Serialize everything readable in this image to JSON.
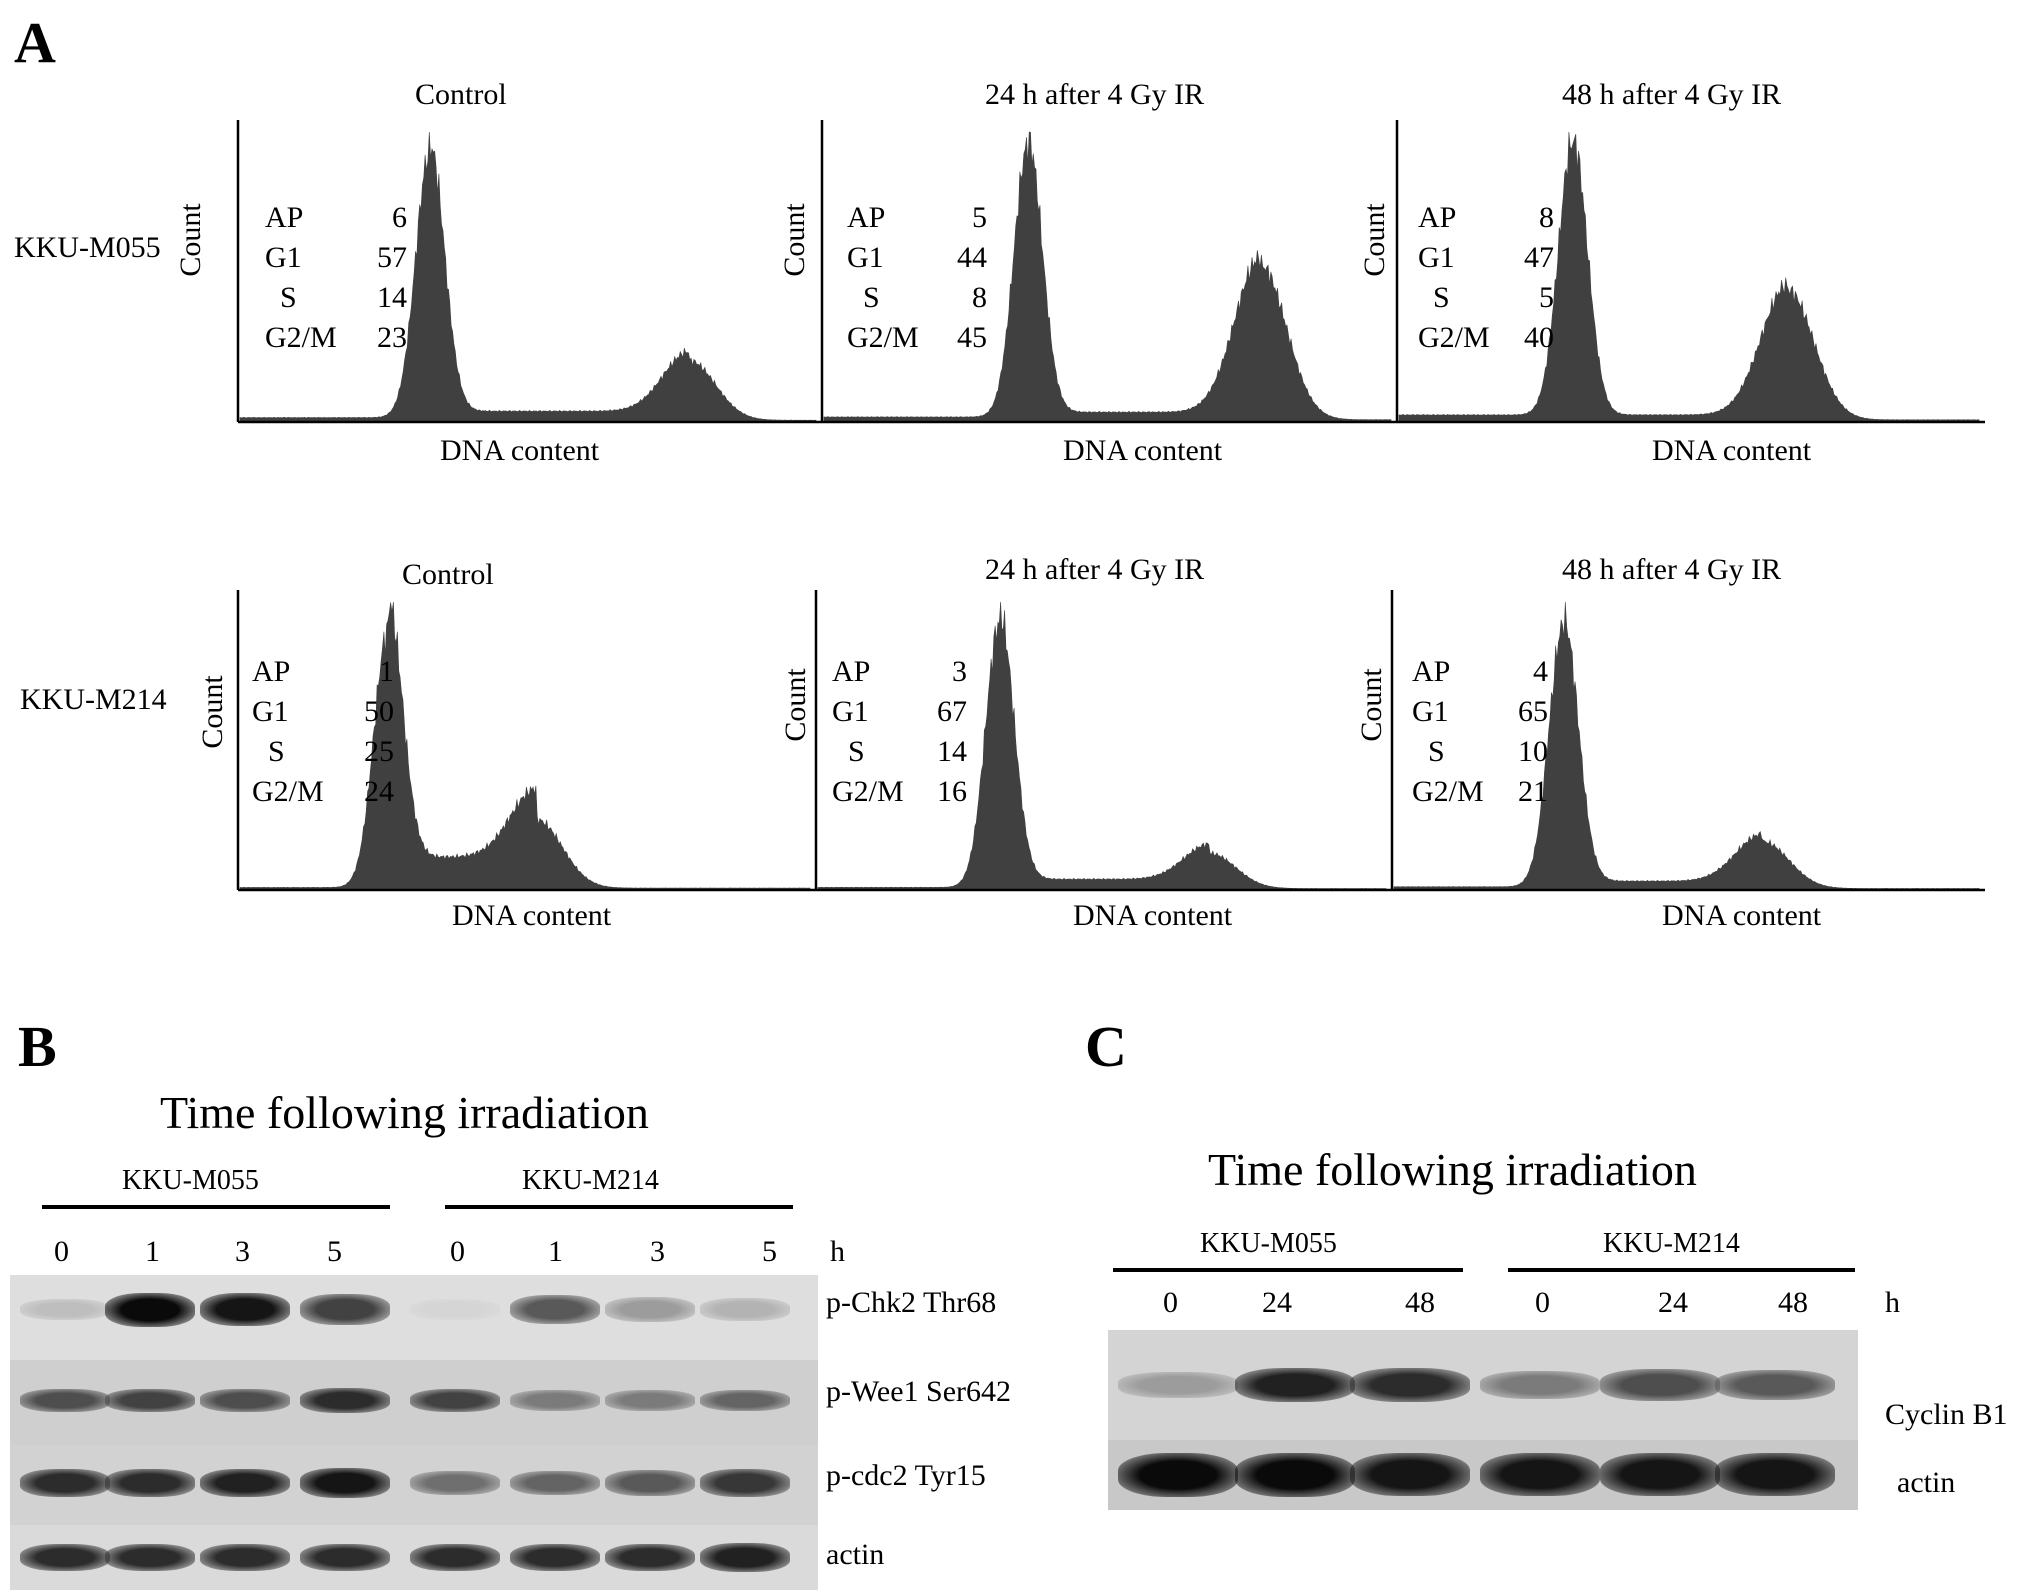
{
  "panels": {
    "a": "A",
    "b": "B",
    "c": "C"
  },
  "flow": {
    "xlabel": "DNA content",
    "ylabel": "Count",
    "phase_labels": [
      "AP",
      "G1",
      "S",
      "G2/M"
    ],
    "rows": [
      {
        "cell_line": "KKU-M055",
        "histograms": [
          {
            "title": "Control",
            "values": [
              "6",
              "57",
              "14",
              "23"
            ]
          },
          {
            "title": "24 h after 4 Gy IR",
            "values": [
              "5",
              "44",
              "8",
              "45"
            ]
          },
          {
            "title": "48 h after 4 Gy IR",
            "values": [
              "8",
              "47",
              "5",
              "40"
            ]
          }
        ]
      },
      {
        "cell_line": "KKU-M214",
        "histograms": [
          {
            "title": "Control",
            "values": [
              "1",
              "50",
              "25",
              "24"
            ]
          },
          {
            "title": "24 h after 4 Gy IR",
            "values": [
              "3",
              "67",
              "14",
              "16"
            ]
          },
          {
            "title": "48 h after 4 Gy IR",
            "values": [
              "4",
              "65",
              "10",
              "21"
            ]
          }
        ]
      }
    ]
  },
  "blot_b": {
    "title": "Time following irradiation",
    "groups": [
      "KKU-M055",
      "KKU-M214"
    ],
    "timepoints": [
      "0",
      "1",
      "3",
      "5",
      "0",
      "1",
      "3",
      "5"
    ],
    "unit": "h",
    "bands": [
      "p-Chk2 Thr68",
      "p-Wee1 Ser642",
      "p-cdc2 Tyr15",
      "actin"
    ],
    "intensity": [
      [
        0.2,
        1.0,
        0.95,
        0.75,
        0.1,
        0.65,
        0.35,
        0.25
      ],
      [
        0.7,
        0.75,
        0.7,
        0.85,
        0.75,
        0.5,
        0.5,
        0.6
      ],
      [
        0.85,
        0.85,
        0.9,
        0.95,
        0.55,
        0.6,
        0.65,
        0.8
      ],
      [
        0.85,
        0.85,
        0.85,
        0.85,
        0.85,
        0.85,
        0.85,
        0.9
      ]
    ]
  },
  "blot_c": {
    "title": "Time following irradiation",
    "groups": [
      "KKU-M055",
      "KKU-M214"
    ],
    "timepoints": [
      "0",
      "24",
      "48",
      "0",
      "24",
      "48"
    ],
    "unit": "h",
    "bands": [
      "Cyclin B1",
      "actin"
    ],
    "intensity": [
      [
        0.35,
        0.9,
        0.85,
        0.5,
        0.7,
        0.65
      ],
      [
        1.0,
        1.0,
        0.95,
        0.95,
        0.95,
        0.95
      ]
    ]
  }
}
